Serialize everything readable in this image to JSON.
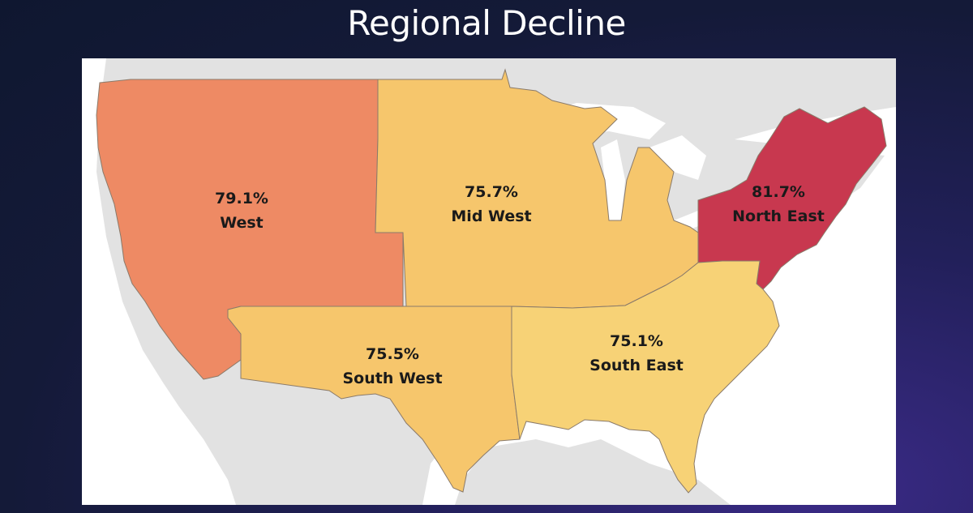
{
  "title": "Regional Decline",
  "regions": [
    {
      "name": "West",
      "value": "79.1%",
      "color": "#ee8a64"
    },
    {
      "name": "Mid West",
      "value": "75.7%",
      "color": "#f6c66c"
    },
    {
      "name": "North East",
      "value": "81.7%",
      "color": "#c8384f"
    },
    {
      "name": "South West",
      "value": "75.5%",
      "color": "#f6c66c"
    },
    {
      "name": "South East",
      "value": "75.1%",
      "color": "#f7d276"
    }
  ],
  "colors": {
    "land_background": "#e2e2e2",
    "water": "#ffffff",
    "region_border": "#8a7a6a"
  }
}
